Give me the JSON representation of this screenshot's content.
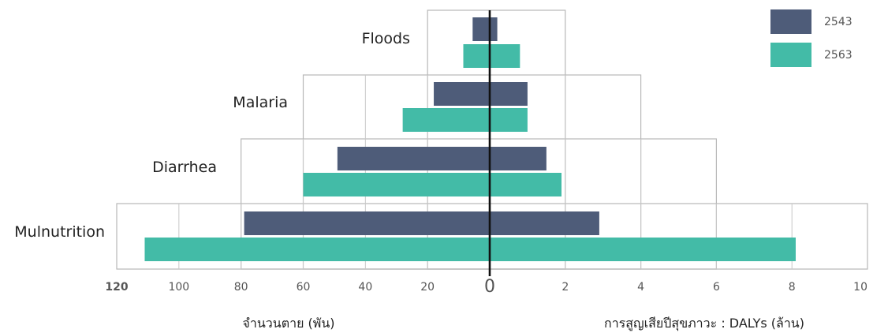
{
  "chart_data": {
    "type": "bar",
    "orientation": "horizontal",
    "layout": "butterfly",
    "categories": [
      "Floods",
      "Malaria",
      "Diarrhea",
      "Mulnutrition"
    ],
    "series": [
      {
        "name": "2543",
        "color": "#4e5c79",
        "left_values": [
          5.5,
          18,
          49,
          79
        ],
        "right_values": [
          0.2,
          1.0,
          1.5,
          2.9
        ]
      },
      {
        "name": "2563",
        "color": "#43bba7",
        "left_values": [
          8.5,
          28,
          60,
          111
        ],
        "right_values": [
          0.8,
          1.0,
          1.9,
          8.1
        ]
      }
    ],
    "left_axis": {
      "label": "จำนวนตาย (พัน)",
      "range": [
        0,
        120
      ],
      "ticks": [
        "120",
        "100",
        "80",
        "60",
        "40",
        "20"
      ]
    },
    "right_axis": {
      "label": "การสูญเสียปีสุขภาวะ : DALYs (ล้าน)",
      "range": [
        0,
        10
      ],
      "ticks": [
        "2",
        "4",
        "6",
        "8",
        "10"
      ]
    },
    "zero_label": "0",
    "legend": {
      "position": "top-right",
      "entries": [
        "2543",
        "2563"
      ]
    },
    "grid": true
  }
}
